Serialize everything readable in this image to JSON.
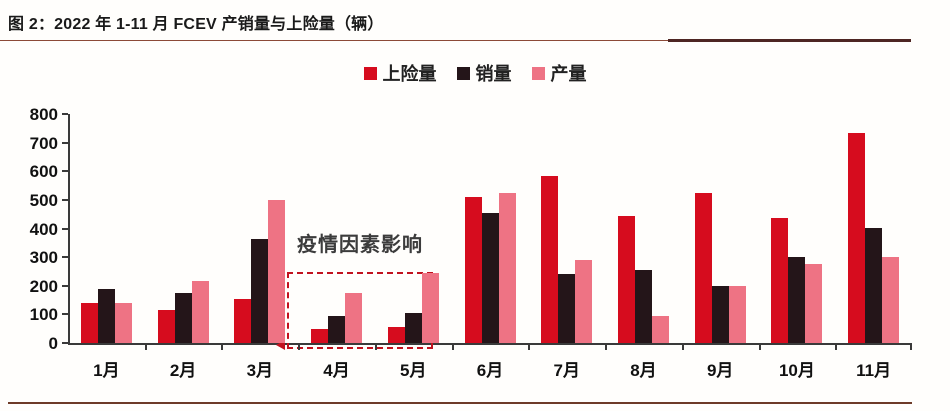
{
  "header": {
    "title": "图 2：2022 年 1-11 月 FCEV 产销量与上险量（辆）"
  },
  "chart_data": {
    "type": "bar",
    "title": "2022 年 1-11 月 FCEV 产销量与上险量（辆）",
    "categories": [
      "1月",
      "2月",
      "3月",
      "4月",
      "5月",
      "6月",
      "7月",
      "8月",
      "9月",
      "10月",
      "11月"
    ],
    "series": [
      {
        "name": "上险量",
        "color": "#d60c1e",
        "values": [
          140,
          115,
          155,
          50,
          55,
          510,
          585,
          445,
          525,
          435,
          735
        ]
      },
      {
        "name": "销量",
        "color": "#241519",
        "values": [
          190,
          175,
          365,
          95,
          105,
          455,
          240,
          255,
          200,
          300,
          400
        ]
      },
      {
        "name": "产量",
        "color": "#ee7384",
        "values": [
          140,
          215,
          500,
          175,
          245,
          525,
          290,
          95,
          200,
          275,
          300
        ]
      }
    ],
    "xlabel": "",
    "ylabel": "",
    "ylim": [
      0,
      800
    ],
    "ytick_step": 100,
    "grid": false,
    "legend_position": "top-center",
    "annotation": {
      "text": "疫情因素影响",
      "box_over_categories": [
        "4月",
        "5月"
      ],
      "box_color": "#c1121f"
    }
  },
  "decor": {
    "axis_color": "#3a3a3a",
    "title_rule_color": "#8c4a38",
    "bottom_rule_color": "#6e3a28"
  }
}
